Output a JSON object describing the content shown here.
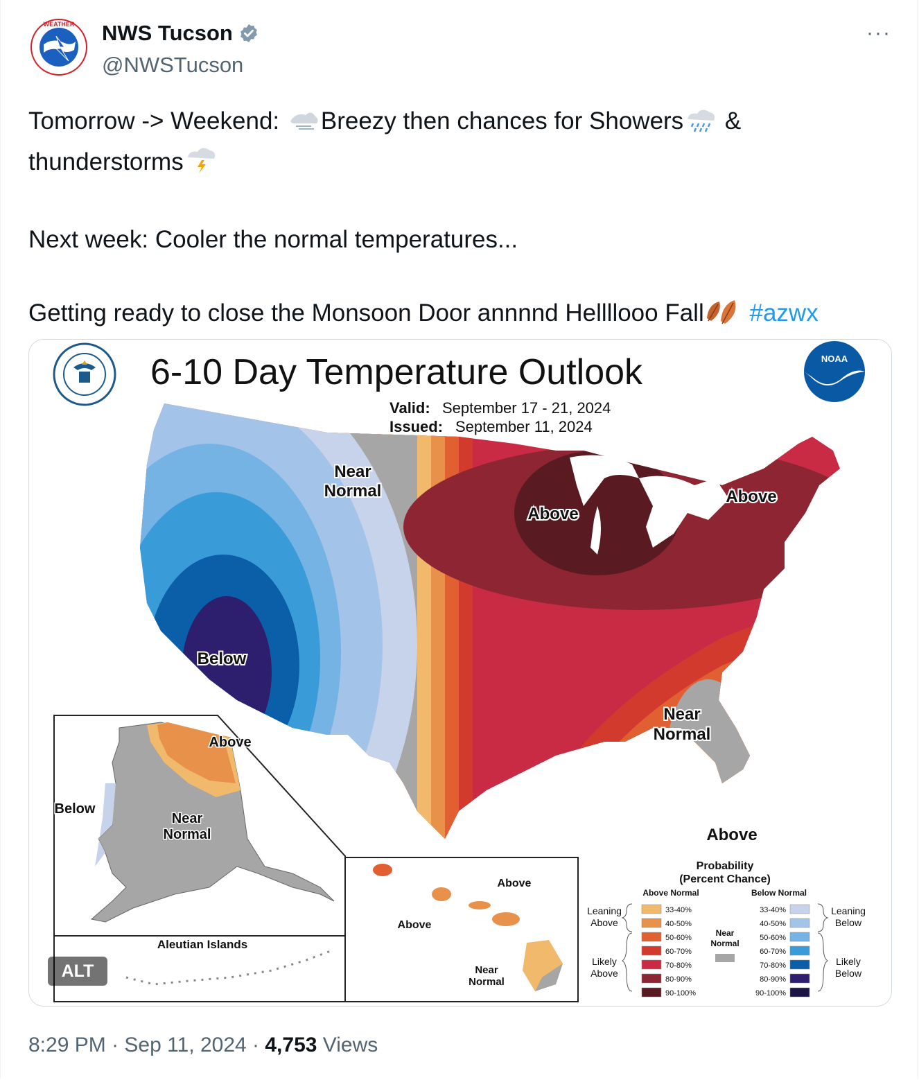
{
  "tweet": {
    "display_name": "NWS Tucson",
    "handle": "@NWSTucson",
    "more_label": "···",
    "line1_a": "Tomorrow -> Weekend: ",
    "line1_b": "Breezy then chances for Showers",
    "line1_c": " &",
    "line2": "thunderstorms",
    "line3": "Next week: Cooler the normal temperatures...",
    "line4": "Getting ready to close the Monsoon Door annnnd Hellllooo Fall",
    "hashtag": "#azwx",
    "time": "8:29 PM",
    "sep1": "·",
    "date": "Sep 11, 2024",
    "sep2": "·",
    "views_count": "4,753",
    "views_label": "Views",
    "alt_badge": "ALT"
  },
  "map": {
    "title": "6-10 Day Temperature Outlook",
    "valid_label": "Valid:",
    "valid_value": "September 17 - 21, 2024",
    "issued_label": "Issued:",
    "issued_value": "September 11, 2024",
    "noaa_label": "NOAA",
    "labels": {
      "near_normal_1a": "Near",
      "near_normal_1b": "Normal",
      "above_1": "Above",
      "above_2": "Above",
      "below_1": "Below",
      "near_normal_2a": "Near",
      "near_normal_2b": "Normal",
      "above_3": "Above",
      "ak_above": "Above",
      "ak_below": "Below",
      "ak_near_a": "Near",
      "ak_near_b": "Normal",
      "aleutian": "Aleutian Islands",
      "hi_above_1": "Above",
      "hi_above_2": "Above",
      "hi_near_a": "Near",
      "hi_near_b": "Normal"
    },
    "legend": {
      "title_a": "Probability",
      "title_b": "(Percent Chance)",
      "above_header": "Above Normal",
      "below_header": "Below Normal",
      "near_a": "Near",
      "near_b": "Normal",
      "leaning_above_a": "Leaning",
      "leaning_above_b": "Above",
      "likely_above_a": "Likely",
      "likely_above_b": "Above",
      "leaning_below_a": "Leaning",
      "leaning_below_b": "Below",
      "likely_below_a": "Likely",
      "likely_below_b": "Below",
      "above_items": [
        {
          "label": "33-40%",
          "color": "#f0b96b"
        },
        {
          "label": "40-50%",
          "color": "#e8914a"
        },
        {
          "label": "50-60%",
          "color": "#e06032"
        },
        {
          "label": "60-70%",
          "color": "#d33a2e"
        },
        {
          "label": "70-80%",
          "color": "#c92b45"
        },
        {
          "label": "80-90%",
          "color": "#8e2533"
        },
        {
          "label": "90-100%",
          "color": "#5a1a22"
        }
      ],
      "below_items": [
        {
          "label": "33-40%",
          "color": "#c7d3ea"
        },
        {
          "label": "40-50%",
          "color": "#a3c4e8"
        },
        {
          "label": "50-60%",
          "color": "#74b3e3"
        },
        {
          "label": "60-70%",
          "color": "#3a9bd9"
        },
        {
          "label": "70-80%",
          "color": "#0b5ea8"
        },
        {
          "label": "80-90%",
          "color": "#2e1e6e"
        },
        {
          "label": "90-100%",
          "color": "#1c1445"
        }
      ],
      "near_color": "#a6a6a6"
    }
  }
}
